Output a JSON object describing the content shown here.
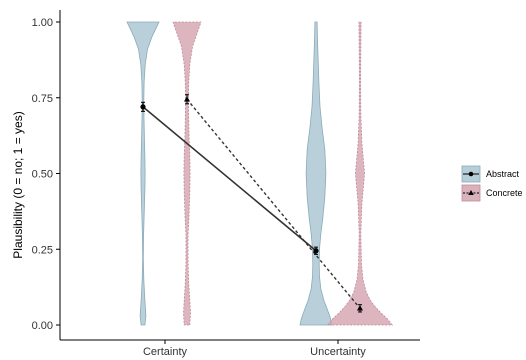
{
  "chart_data": {
    "type": "violin",
    "title": "",
    "xlabel": "",
    "ylabel": "Plausibility (0 = no; 1 = yes)",
    "categories": [
      "Certainty",
      "Uncertainty"
    ],
    "ylim": [
      0,
      1
    ],
    "yticks": [
      0,
      0.25,
      0.5,
      0.75,
      1
    ],
    "ytick_labels": [
      "0.00",
      "0.25",
      "0.50",
      "0.75",
      "1.00"
    ],
    "grid": false,
    "legend_position": "right",
    "series": [
      {
        "name": "Abstract",
        "color": "#a9c6d3",
        "outline": "#8aaab8",
        "line_style": "solid",
        "marker": "circle",
        "means": [
          0.72,
          0.245
        ],
        "errors": [
          0.015,
          0.012
        ],
        "density": [
          [
            [
              0,
              0.12
            ],
            [
              0.03,
              0.18
            ],
            [
              0.08,
              0.12
            ],
            [
              0.15,
              0.05
            ],
            [
              0.22,
              0.02
            ],
            [
              0.3,
              0.04
            ],
            [
              0.38,
              0.08
            ],
            [
              0.45,
              0.12
            ],
            [
              0.5,
              0.13
            ],
            [
              0.55,
              0.12
            ],
            [
              0.62,
              0.09
            ],
            [
              0.68,
              0.06
            ],
            [
              0.74,
              0.05
            ],
            [
              0.8,
              0.07
            ],
            [
              0.86,
              0.14
            ],
            [
              0.91,
              0.28
            ],
            [
              0.95,
              0.55
            ],
            [
              0.98,
              0.82
            ],
            [
              1,
              1.0
            ]
          ],
          [
            [
              0,
              1.0
            ],
            [
              0.02,
              0.92
            ],
            [
              0.05,
              0.72
            ],
            [
              0.08,
              0.5
            ],
            [
              0.12,
              0.3
            ],
            [
              0.16,
              0.22
            ],
            [
              0.2,
              0.2
            ],
            [
              0.25,
              0.22
            ],
            [
              0.3,
              0.3
            ],
            [
              0.35,
              0.42
            ],
            [
              0.42,
              0.55
            ],
            [
              0.5,
              0.62
            ],
            [
              0.58,
              0.55
            ],
            [
              0.65,
              0.38
            ],
            [
              0.72,
              0.25
            ],
            [
              0.8,
              0.18
            ],
            [
              0.88,
              0.13
            ],
            [
              0.95,
              0.09
            ],
            [
              1,
              0.07
            ]
          ]
        ]
      },
      {
        "name": "Concrete",
        "color": "#d4a5b0",
        "outline": "#bf8a98",
        "line_style": "dashed",
        "marker": "triangle",
        "means": [
          0.745,
          0.055
        ],
        "errors": [
          0.015,
          0.012
        ],
        "density": [
          [
            [
              0,
              0.2
            ],
            [
              0.04,
              0.25
            ],
            [
              0.08,
              0.2
            ],
            [
              0.14,
              0.12
            ],
            [
              0.2,
              0.08
            ],
            [
              0.26,
              0.07
            ],
            [
              0.3,
              0.08
            ],
            [
              0.36,
              0.14
            ],
            [
              0.44,
              0.2
            ],
            [
              0.5,
              0.22
            ],
            [
              0.56,
              0.2
            ],
            [
              0.62,
              0.15
            ],
            [
              0.68,
              0.12
            ],
            [
              0.74,
              0.1
            ],
            [
              0.8,
              0.12
            ],
            [
              0.86,
              0.2
            ],
            [
              0.92,
              0.4
            ],
            [
              0.96,
              0.7
            ],
            [
              1,
              1.0
            ]
          ],
          [
            [
              0,
              0.85
            ],
            [
              0.02,
              0.72
            ],
            [
              0.04,
              0.55
            ],
            [
              0.06,
              0.4
            ],
            [
              0.08,
              0.28
            ],
            [
              0.11,
              0.16
            ],
            [
              0.15,
              0.08
            ],
            [
              0.2,
              0.04
            ],
            [
              0.3,
              0.02
            ],
            [
              0.4,
              0.05
            ],
            [
              0.47,
              0.1
            ],
            [
              0.5,
              0.12
            ],
            [
              0.53,
              0.1
            ],
            [
              0.6,
              0.05
            ],
            [
              0.7,
              0.02
            ],
            [
              0.8,
              0.015
            ],
            [
              0.9,
              0.02
            ],
            [
              1,
              0.03
            ]
          ]
        ]
      }
    ]
  }
}
